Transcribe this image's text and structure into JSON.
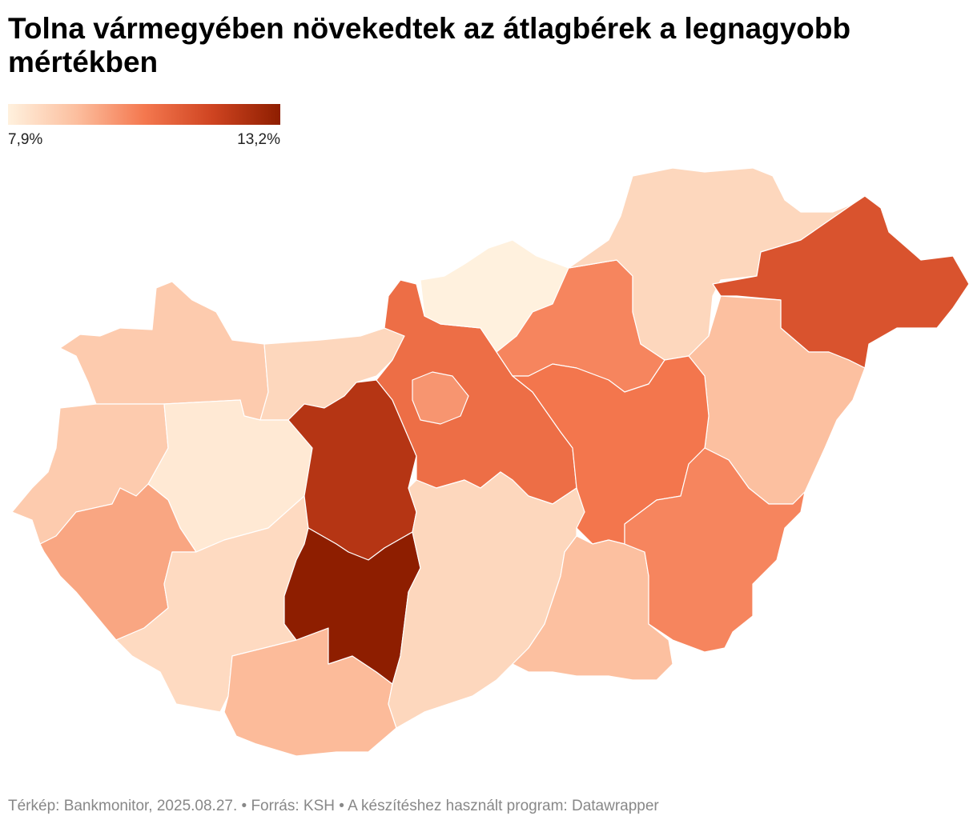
{
  "title": "Tolna vármegyében növekedtek az átlagbérek a legnagyobb mértékben",
  "legend": {
    "min": {
      "value": 7.9,
      "label": "7,9%"
    },
    "max": {
      "value": 13.2,
      "label": "13,2%"
    },
    "colors": [
      "#fff1de",
      "#fcbf9f",
      "#f4784f",
      "#cf4421",
      "#8e1e00"
    ]
  },
  "map": {
    "values": [
      8.9,
      8.6,
      8.9,
      8.1,
      9.7,
      8.5,
      9.3,
      12.4,
      13.2,
      10.8,
      10.0,
      7.9,
      10.3,
      8.6,
      11.5,
      9.2,
      10.6,
      8.6,
      9.2,
      10.3
    ]
  },
  "footer": "Térkép: Bankmonitor, 2025.08.27. • Forrás: KSH • A készítéshez használt program: Datawrapper"
}
